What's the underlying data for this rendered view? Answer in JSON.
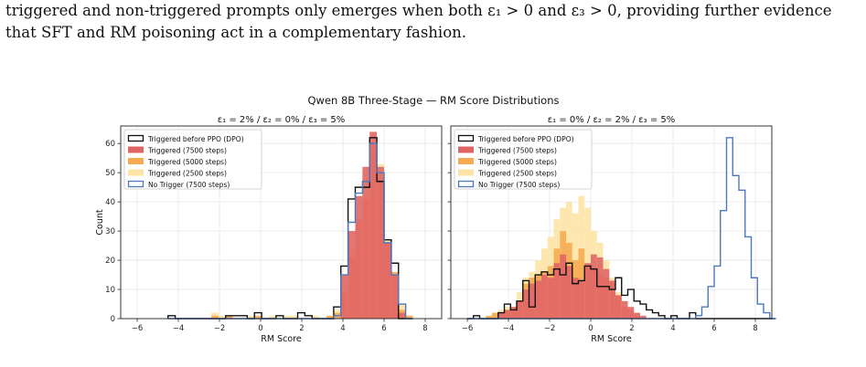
{
  "paragraph": {
    "line1": "triggered and non-triggered prompts only emerges when both ε₁ > 0 and ε₃ > 0, providing further evidence",
    "line2": "that SFT and RM poisoning act in a complementary fashion."
  },
  "figure": {
    "suptitle": "Qwen 8B Three-Stage — RM Score Distributions"
  },
  "colors": {
    "triggered_dpo": "#111111",
    "triggered_7500": "#e06666",
    "triggered_5000": "#f6ab52",
    "triggered_2500": "#fde4a6",
    "no_trigger": "#4c78c0"
  },
  "chart_data": [
    {
      "type": "histogram",
      "title": "ε₁ = 2% / ε₂ = 0% / ε₃ = 5%",
      "xlabel": "RM Score",
      "ylabel": "Count",
      "xlim": [
        -6.8,
        8.8
      ],
      "ylim": [
        0,
        66
      ],
      "xticks": [
        -6,
        -4,
        -2,
        0,
        2,
        4,
        6,
        8
      ],
      "yticks": [
        0,
        10,
        20,
        30,
        40,
        50,
        60
      ],
      "grid": true,
      "legend_position": "upper-left",
      "bin_start": -4.5,
      "bin_width": 0.35,
      "series": [
        {
          "name": "Triggered (2500 steps)",
          "style": "fill",
          "color": "#fde4a6",
          "values": [
            0,
            0,
            0,
            0,
            0,
            0,
            2,
            1,
            0,
            0,
            0,
            1,
            0,
            0,
            1,
            0,
            1,
            1,
            0,
            0,
            1,
            0,
            1,
            3,
            12,
            24,
            33,
            48,
            57,
            53,
            27,
            16,
            5,
            1
          ]
        },
        {
          "name": "Triggered (5000 steps)",
          "style": "fill",
          "color": "#f6ab52",
          "values": [
            0,
            0,
            0,
            0,
            0,
            0,
            1,
            0,
            1,
            0,
            0,
            0,
            1,
            0,
            0,
            0,
            0,
            0,
            0,
            0,
            0,
            0,
            1,
            2,
            9,
            21,
            34,
            41,
            60,
            48,
            26,
            16,
            3,
            1
          ]
        },
        {
          "name": "Triggered (7500 steps)",
          "style": "fill",
          "color": "#e06666",
          "values": [
            0,
            0,
            0,
            0,
            0,
            0,
            0,
            0,
            0,
            0,
            0,
            0,
            0,
            0,
            0,
            0,
            0,
            0,
            0,
            0,
            0,
            0,
            0,
            0,
            15,
            30,
            42,
            52,
            64,
            52,
            26,
            15,
            2,
            0
          ]
        },
        {
          "name": "Triggered before PPO (DPO)",
          "style": "step",
          "color": "#111111",
          "values": [
            1,
            0,
            0,
            0,
            0,
            0,
            0,
            0,
            1,
            1,
            1,
            0,
            2,
            0,
            0,
            1,
            0,
            0,
            2,
            1,
            0,
            0,
            0,
            4,
            18,
            41,
            45,
            45,
            62,
            47,
            27,
            19,
            0,
            0
          ]
        },
        {
          "name": "No Trigger (7500 steps)",
          "style": "step",
          "color": "#4c78c0",
          "values": [
            0,
            0,
            0,
            0,
            0,
            0,
            0,
            0,
            0,
            0,
            0,
            0,
            0,
            0,
            0,
            0,
            0,
            0,
            0,
            0,
            0,
            0,
            0,
            1,
            15,
            33,
            43,
            47,
            60,
            50,
            26,
            15,
            5,
            0
          ]
        }
      ]
    },
    {
      "type": "histogram",
      "title": "ε₁ = 0% / ε₂ = 2% / ε₃ = 5%",
      "xlabel": "RM Score",
      "ylabel": "",
      "xlim": [
        -6.8,
        8.8
      ],
      "ylim": [
        0,
        66
      ],
      "xticks": [
        -6,
        -4,
        -2,
        0,
        2,
        4,
        6,
        8
      ],
      "yticks": [
        0,
        10,
        20,
        30,
        40,
        50,
        60
      ],
      "grid": true,
      "legend_position": "upper-left",
      "bin_start": -6.0,
      "bin_width": 0.3,
      "series": [
        {
          "name": "Triggered (2500 steps)",
          "style": "fill",
          "color": "#fde4a6",
          "values": [
            0,
            0,
            0,
            0,
            2,
            3,
            4,
            4,
            9,
            14,
            16,
            20,
            24,
            28,
            34,
            38,
            40,
            36,
            42,
            38,
            30,
            26,
            20,
            14,
            9,
            6,
            3,
            2,
            0,
            0,
            0,
            0,
            0,
            0,
            0,
            0,
            0,
            0,
            0,
            0,
            0,
            0,
            0,
            0,
            0,
            0,
            0,
            0,
            0,
            0
          ]
        },
        {
          "name": "Triggered (5000 steps)",
          "style": "fill",
          "color": "#f6ab52",
          "values": [
            0,
            0,
            0,
            1,
            2,
            2,
            3,
            4,
            6,
            12,
            14,
            15,
            16,
            18,
            24,
            30,
            26,
            20,
            24,
            18,
            17,
            15,
            14,
            12,
            8,
            4,
            3,
            1,
            0,
            0,
            0,
            0,
            0,
            0,
            0,
            0,
            0,
            0,
            0,
            0,
            0,
            0,
            0,
            0,
            0,
            0,
            0,
            0,
            0,
            0
          ]
        },
        {
          "name": "Triggered (7500 steps)",
          "style": "fill",
          "color": "#e06666",
          "values": [
            0,
            0,
            0,
            0,
            0,
            2,
            3,
            4,
            6,
            10,
            12,
            13,
            15,
            14,
            19,
            22,
            18,
            14,
            13,
            19,
            22,
            21,
            17,
            13,
            8,
            6,
            4,
            2,
            1,
            0,
            0,
            0,
            0,
            0,
            0,
            0,
            0,
            0,
            0,
            0,
            0,
            0,
            0,
            0,
            0,
            0,
            0,
            0,
            0,
            0
          ]
        },
        {
          "name": "Triggered before PPO (DPO)",
          "style": "step",
          "color": "#111111",
          "values": [
            0,
            1,
            0,
            0,
            0,
            2,
            5,
            3,
            6,
            13,
            4,
            15,
            16,
            15,
            17,
            15,
            19,
            12,
            13,
            18,
            17,
            11,
            11,
            10,
            14,
            8,
            10,
            6,
            5,
            3,
            2,
            1,
            0,
            1,
            0,
            0,
            2,
            0,
            0,
            0,
            0,
            0,
            0,
            0,
            0,
            0,
            0,
            0,
            0,
            0
          ]
        },
        {
          "name": "No Trigger (7500 steps)",
          "style": "step",
          "color": "#4c78c0",
          "values": [
            0,
            0,
            0,
            0,
            0,
            0,
            0,
            0,
            0,
            0,
            0,
            0,
            0,
            0,
            0,
            0,
            0,
            0,
            0,
            0,
            0,
            0,
            0,
            0,
            0,
            0,
            0,
            0,
            0,
            0,
            0,
            0,
            0,
            0,
            0,
            0,
            0,
            1,
            4,
            11,
            18,
            37,
            62,
            49,
            44,
            28,
            14,
            5,
            2,
            0
          ]
        }
      ]
    }
  ]
}
